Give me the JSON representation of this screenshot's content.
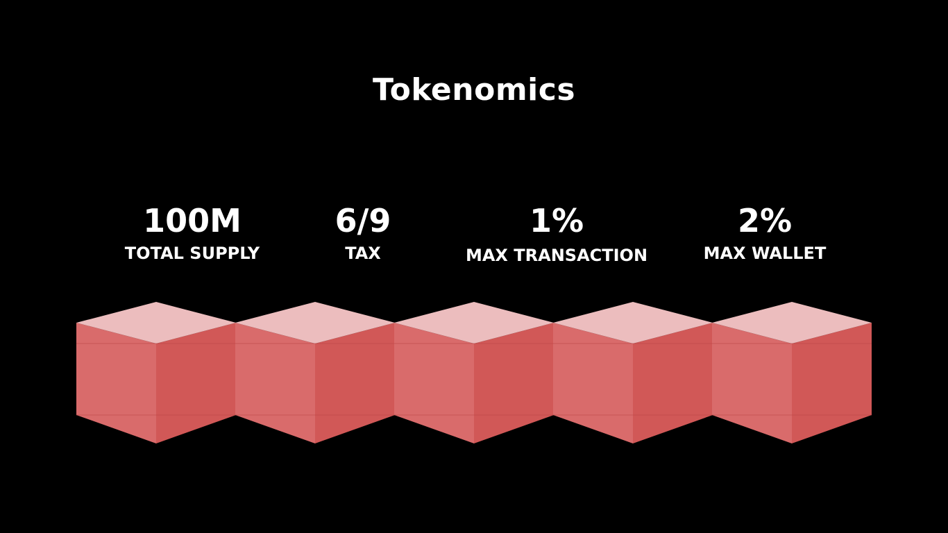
{
  "title": "Tokenomics",
  "stats": [
    {
      "value": "100M",
      "label": "TOTAL SUPPLY"
    },
    {
      "value": "6/9",
      "label": "TAX"
    },
    {
      "value": "1%",
      "label": "MAX TRANSACTION"
    },
    {
      "value": "2%",
      "label": "MAX WALLET"
    }
  ],
  "cube_colors": {
    "top": "#ECBDBE",
    "left": "#D96B6B",
    "right": "#D15857",
    "edge": "#B84444"
  },
  "background": "#000000"
}
